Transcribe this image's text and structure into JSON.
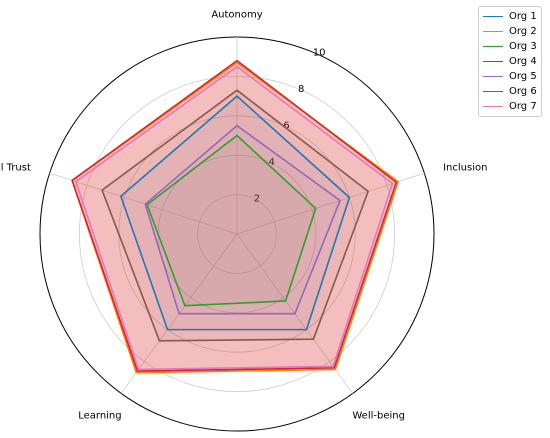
{
  "chart_data": {
    "type": "radar",
    "title": "",
    "axes": [
      "Autonomy",
      "Inclusion",
      "Well-being",
      "Learning",
      "Ethical Trust"
    ],
    "rmax": 10,
    "r_ticks": [
      "2",
      "4",
      "6",
      "8",
      "10"
    ],
    "grid": true,
    "legend_position": "upper-right-outside",
    "series": [
      {
        "name": "Org 1",
        "color": "#1f77b4",
        "values": [
          7.0,
          6.0,
          6.0,
          6.0,
          6.2
        ],
        "fill": false
      },
      {
        "name": "Org 2",
        "color": "#ff7f0e",
        "values": [
          8.7,
          8.6,
          8.5,
          8.7,
          8.8
        ],
        "fill": false
      },
      {
        "name": "Org 3",
        "color": "#2ca02c",
        "values": [
          5.0,
          4.2,
          4.2,
          4.5,
          4.8
        ],
        "fill": false
      },
      {
        "name": "Org 4",
        "color": "#d62728",
        "values": [
          8.8,
          8.5,
          8.4,
          8.6,
          8.8
        ],
        "fill": true
      },
      {
        "name": "Org 5",
        "color": "#9467bd",
        "values": [
          5.5,
          5.5,
          5.0,
          5.0,
          4.9
        ],
        "fill": false
      },
      {
        "name": "Org 6",
        "color": "#8c564b",
        "values": [
          7.3,
          7.0,
          6.6,
          6.7,
          7.2
        ],
        "fill": false
      },
      {
        "name": "Org 7",
        "color": "#e377c2",
        "values": [
          8.5,
          8.3,
          8.3,
          8.5,
          8.6
        ],
        "fill": false
      }
    ]
  }
}
